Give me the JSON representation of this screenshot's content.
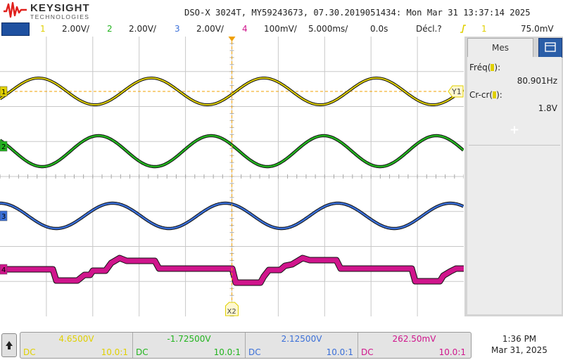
{
  "header": {
    "brand_name": "KEYSIGHT",
    "brand_sub": "TECHNOLOGIES",
    "instrument_info": "DSO-X 3024T, MY59243673, 07.30.2019051434: Mon Mar 31 13:37:14 2025"
  },
  "channel_bar": {
    "channels": [
      {
        "num": "1",
        "scale": "2.00V/",
        "color": "#e0d000"
      },
      {
        "num": "2",
        "scale": "2.00V/",
        "color": "#22b41e"
      },
      {
        "num": "3",
        "scale": "2.00V/",
        "color": "#3a6fd8"
      },
      {
        "num": "4",
        "scale": "100mV/",
        "color": "#d0158c"
      }
    ],
    "timebase": "5.000ms/",
    "delay": "0.0s",
    "trigger_mode": "Décl.?",
    "trigger_channel": "1",
    "trigger_level": "75.0mV"
  },
  "markers": {
    "cursor_y": "Y1",
    "cursor_x": "X2"
  },
  "side_panel": {
    "tab_label": "Mes",
    "measurements": [
      {
        "label": "Fréq(",
        "suffix": "):",
        "value": "80.901Hz"
      },
      {
        "label": "Cr-cr(",
        "suffix": "):",
        "value": "1.8V"
      }
    ],
    "add_symbol": "+"
  },
  "readout_bar": {
    "channels": [
      {
        "value": "4.6500V",
        "coupling": "DC",
        "probe": "10.0:1",
        "color": "#e0d000"
      },
      {
        "value": "-1.72500V",
        "coupling": "DC",
        "probe": "10.0:1",
        "color": "#22b41e"
      },
      {
        "value": "2.12500V",
        "coupling": "DC",
        "probe": "10.0:1",
        "color": "#3a6fd8"
      },
      {
        "value": "262.50mV",
        "coupling": "DC",
        "probe": "10.0:1",
        "color": "#d0158c"
      }
    ]
  },
  "clock": {
    "time": "1:36 PM",
    "date": "Mar 31, 2025"
  },
  "colors": {
    "ch1": "#e0d000",
    "ch2": "#22b41e",
    "ch3": "#3a6fd8",
    "ch4": "#d0158c",
    "grid": "#c8c8c8",
    "trigger": "#f0a000",
    "accent": "#1e50a0"
  }
}
